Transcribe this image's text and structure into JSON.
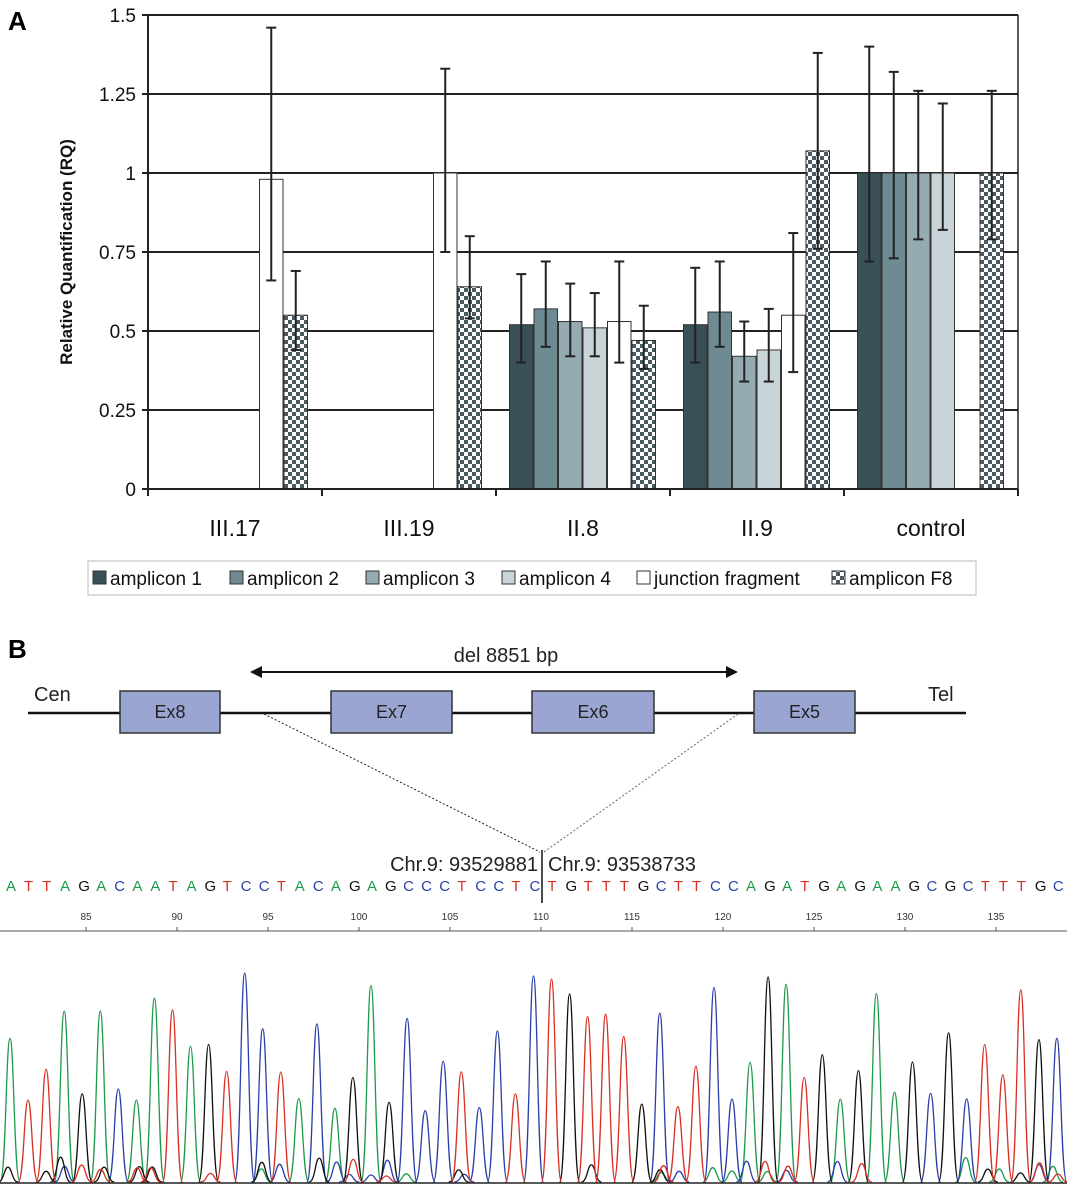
{
  "panel_a": {
    "label": "A",
    "chart_data": {
      "type": "bar",
      "ylabel": "Relative Quantification (RQ)",
      "ylim": [
        0,
        1.5
      ],
      "yticks": [
        0,
        0.25,
        0.5,
        0.75,
        1,
        1.25,
        1.5
      ],
      "ytick_labels": [
        "0",
        "0.25",
        "0.5",
        "0.75",
        "1",
        "1.25",
        "1.5"
      ],
      "categories": [
        "III.17",
        "III.19",
        "II.8",
        "II.9",
        "control"
      ],
      "series": [
        {
          "name": "amplicon 1",
          "color": "#3a5058",
          "pattern": "solid",
          "values": [
            null,
            null,
            0.52,
            0.52,
            1.0
          ],
          "errors": [
            null,
            null,
            [
              0.4,
              0.68
            ],
            [
              0.4,
              0.7
            ],
            [
              0.72,
              1.4
            ]
          ]
        },
        {
          "name": "amplicon 2",
          "color": "#6e8a92",
          "pattern": "solid",
          "values": [
            null,
            null,
            0.57,
            0.56,
            1.0
          ],
          "errors": [
            null,
            null,
            [
              0.45,
              0.72
            ],
            [
              0.45,
              0.72
            ],
            [
              0.73,
              1.32
            ]
          ]
        },
        {
          "name": "amplicon 3",
          "color": "#95aab1",
          "pattern": "solid",
          "values": [
            null,
            null,
            0.53,
            0.42,
            1.0
          ],
          "errors": [
            null,
            null,
            [
              0.42,
              0.65
            ],
            [
              0.34,
              0.53
            ],
            [
              0.79,
              1.26
            ]
          ]
        },
        {
          "name": "amplicon 4",
          "color": "#c9d4d8",
          "pattern": "solid",
          "values": [
            null,
            null,
            0.51,
            0.44,
            1.0
          ],
          "errors": [
            null,
            null,
            [
              0.42,
              0.62
            ],
            [
              0.34,
              0.57
            ],
            [
              0.82,
              1.22
            ]
          ]
        },
        {
          "name": "junction fragment",
          "color": "#ffffff",
          "pattern": "solid",
          "values": [
            0.98,
            1.0,
            0.53,
            0.55,
            null
          ],
          "errors": [
            [
              0.66,
              1.46
            ],
            [
              0.75,
              1.33
            ],
            [
              0.4,
              0.72
            ],
            [
              0.37,
              0.81
            ],
            null
          ]
        },
        {
          "name": "amplicon F8",
          "color": "#8a9aa0",
          "pattern": "checker",
          "values": [
            0.55,
            0.64,
            0.47,
            1.07,
            1.0
          ],
          "errors": [
            [
              0.44,
              0.69
            ],
            [
              0.54,
              0.8
            ],
            [
              0.38,
              0.58
            ],
            [
              0.76,
              1.38
            ],
            [
              0.79,
              1.26
            ]
          ]
        }
      ],
      "grid": true,
      "legend_position": "bottom"
    }
  },
  "panel_b": {
    "label": "B",
    "deletion_label": "del 8851 bp",
    "left_end": "Cen",
    "right_end": "Tel",
    "exons": [
      "Ex8",
      "Ex7",
      "Ex6",
      "Ex5"
    ],
    "breakpoint_left": "Chr.9: 93529881",
    "breakpoint_right": "Chr.9: 93538733",
    "sequence": "ATTAGACAATAGTCCTACAGAGCCCTCCTCTGTTTGCTTCCAGATGAGAAGCGCTTTGC",
    "positions": [
      "85",
      "90",
      "95",
      "100",
      "105",
      "110",
      "115",
      "120",
      "125",
      "130",
      "135"
    ],
    "base_colors": {
      "A": "#1f9a4a",
      "C": "#2b3fa8",
      "G": "#111111",
      "T": "#d93025"
    }
  }
}
